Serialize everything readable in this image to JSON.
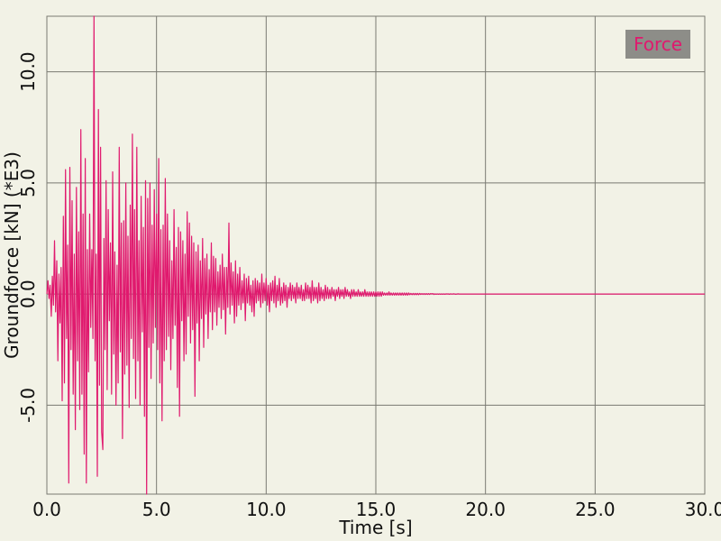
{
  "colors": {
    "background": "#f2f2e6",
    "grid": "#7a7a72",
    "series": "#e0196e",
    "legend_bg": "#8d8d88"
  },
  "chart_data": {
    "type": "line",
    "xlabel": "Time [s]",
    "ylabel": "Groundforce [kN] (*E3)",
    "xlim": [
      0,
      30
    ],
    "ylim": [
      -9.0,
      12.5
    ],
    "grid": true,
    "legend_position": "top-right",
    "x_ticks": [
      "0.0",
      "5.0",
      "10.0",
      "15.0",
      "20.0",
      "25.0",
      "30.0"
    ],
    "y_ticks": [
      "10.0",
      "5.0",
      "0.0",
      "-5.0"
    ],
    "series": [
      {
        "name": "Force",
        "color": "#e0196e",
        "sample_dt": 0.05,
        "y": [
          0.0,
          0.6,
          -0.2,
          0.4,
          -1.0,
          0.8,
          -0.5,
          2.4,
          -0.8,
          1.5,
          -3.0,
          0.9,
          -1.3,
          1.2,
          -4.8,
          3.5,
          -4.0,
          5.6,
          -2.0,
          2.2,
          -8.5,
          5.7,
          -2.5,
          4.2,
          -4.5,
          1.8,
          -6.1,
          4.8,
          -3.0,
          2.8,
          -5.2,
          7.4,
          -4.5,
          3.6,
          -7.2,
          6.1,
          -8.5,
          2.0,
          -3.5,
          3.6,
          -1.5,
          2.0,
          -2.0,
          12.5,
          -3.0,
          1.8,
          -8.2,
          8.3,
          -4.1,
          6.6,
          -6.2,
          -7.0,
          2.5,
          -2.5,
          5.1,
          -4.3,
          3.8,
          -1.2,
          2.3,
          -4.5,
          5.5,
          -2.7,
          1.9,
          -5.0,
          1.3,
          -4.0,
          6.6,
          -2.6,
          3.2,
          -6.5,
          3.3,
          -3.6,
          5.0,
          -3.2,
          2.6,
          -5.1,
          4.0,
          -2.0,
          7.2,
          -2.9,
          3.8,
          -4.7,
          6.6,
          -3.0,
          2.4,
          -5.0,
          4.4,
          -1.7,
          3.0,
          -5.5,
          5.1,
          -9.0,
          4.3,
          -2.4,
          5.0,
          -3.8,
          3.1,
          -2.2,
          4.7,
          -1.5,
          3.6,
          -2.5,
          6.1,
          -4.0,
          2.9,
          -5.7,
          3.1,
          -3.0,
          5.2,
          -2.5,
          3.6,
          -1.9,
          2.4,
          -3.4,
          1.5,
          -2.0,
          3.8,
          -1.4,
          2.1,
          -4.2,
          3.0,
          -5.5,
          2.8,
          -1.2,
          2.4,
          -3.0,
          1.8,
          -2.7,
          3.7,
          -1.0,
          3.2,
          -2.2,
          2.6,
          -1.6,
          2.3,
          -4.6,
          1.9,
          -1.3,
          2.2,
          -3.0,
          1.5,
          -1.1,
          2.5,
          -2.4,
          1.6,
          -0.9,
          1.8,
          -2.0,
          1.1,
          -0.8,
          2.3,
          -1.6,
          1.7,
          -0.8,
          1.6,
          -1.4,
          1.0,
          -0.6,
          1.3,
          -1.1,
          1.8,
          -0.7,
          1.2,
          -1.8,
          1.2,
          -0.6,
          3.2,
          -0.9,
          1.4,
          -0.5,
          1.0,
          -1.3,
          1.5,
          -1.0,
          0.9,
          -0.5,
          1.2,
          -0.7,
          0.6,
          -0.4,
          0.9,
          -1.2,
          0.7,
          -0.4,
          0.8,
          -0.5,
          0.4,
          -0.8,
          0.6,
          -1.0,
          0.7,
          -0.4,
          0.6,
          -0.3,
          0.5,
          -0.6,
          0.9,
          -0.4,
          0.5,
          -0.3,
          0.7,
          -0.5,
          0.4,
          -0.8,
          0.5,
          -0.3,
          0.6,
          -0.4,
          0.8,
          -0.6,
          0.4,
          -0.3,
          0.7,
          -0.5,
          0.3,
          -0.4,
          0.5,
          -0.3,
          0.4,
          -0.6,
          0.3,
          -0.2,
          0.5,
          -0.3,
          0.4,
          -0.2,
          0.3,
          -0.4,
          0.5,
          -0.2,
          0.3,
          -0.2,
          0.4,
          -0.3,
          0.2,
          -0.3,
          0.5,
          -0.2,
          0.4,
          -0.2,
          0.3,
          -0.4,
          0.6,
          -0.3,
          0.3,
          -0.2,
          0.3,
          -0.4,
          0.5,
          -0.3,
          0.3,
          -0.2,
          0.2,
          -0.3,
          0.4,
          -0.2,
          0.3,
          -0.2,
          0.2,
          -0.2,
          0.3,
          -0.1,
          0.2,
          -0.3,
          0.2,
          -0.1,
          0.3,
          -0.2,
          0.2,
          -0.1,
          0.2,
          -0.2,
          0.3,
          -0.1,
          0.2,
          -0.1,
          0.1,
          -0.2,
          0.2,
          -0.1,
          0.2,
          -0.1,
          0.1,
          -0.1,
          0.2,
          -0.1,
          0.1,
          -0.1,
          0.1,
          -0.1,
          0.2,
          -0.1,
          0.1,
          -0.1,
          0.1,
          -0.1,
          0.1,
          -0.1,
          0.1,
          -0.1,
          0.1,
          -0.1,
          0.1,
          -0.1,
          0.1,
          -0.1,
          0.1,
          -0.05,
          0.05,
          -0.05,
          0.05,
          -0.05,
          0.1,
          -0.05,
          0.05,
          -0.05,
          0.05,
          -0.05,
          0.05,
          -0.05,
          0.05,
          -0.05,
          0.05,
          -0.05,
          0.05,
          -0.05,
          0.05,
          -0.05,
          0.05,
          -0.05,
          0.05,
          -0.03,
          0.03,
          -0.03,
          0.03,
          -0.03,
          0.03,
          -0.03,
          0.03,
          -0.03,
          0.03,
          -0.02,
          0.02,
          -0.02,
          0.02,
          -0.02,
          0.02,
          -0.02,
          0.02,
          -0.02,
          0.02,
          0.0,
          0.02,
          -0.02,
          0.01,
          -0.01,
          0.01,
          -0.01,
          0.01,
          -0.01,
          0.01,
          -0.01,
          0.01,
          -0.01,
          0.01,
          0.0,
          0.01,
          -0.01,
          0.01,
          0.0,
          0.0,
          0.01,
          0.0,
          -0.01,
          0.0,
          0.01,
          0.0,
          0.0,
          0.0,
          0.0,
          0.0,
          0.0,
          0.0,
          0.0,
          0.0,
          0.0,
          0.0,
          0.0,
          0.0,
          0.0,
          0.0,
          0.0,
          0.0,
          0.0,
          0.0,
          0.0,
          0.0,
          0.0,
          0.0,
          0.0,
          0.0,
          0.0,
          0.0,
          0.0,
          0.0,
          0.0,
          0.0,
          0.0,
          0.0,
          0.0,
          0.0,
          0.0,
          0.0,
          0.0,
          0.0,
          0.0,
          0.0,
          0.0,
          0.0,
          0.0,
          0.0,
          0.0,
          0.0,
          0.0,
          0.0,
          0.0,
          0.0,
          0.0,
          0.0,
          0.0,
          0.0,
          0.0,
          0.0,
          0.0,
          0.0,
          0.0,
          0.0,
          0.0,
          0.0,
          0.0,
          0.0,
          0.0,
          0.0,
          0.0,
          0.0,
          0.0,
          0.0,
          0.0,
          0.0,
          0.0,
          0.0,
          0.0,
          0.0,
          0.0,
          0.0,
          0.0,
          0.0,
          0.0,
          0.0,
          0.0,
          0.0,
          0.0,
          0.0,
          0.0,
          0.0,
          0.0,
          0.0,
          0.0,
          0.0,
          0.0,
          0.0,
          0.0,
          0.0,
          0.0,
          0.0,
          0.0,
          0.0,
          0.0,
          0.0,
          0.0,
          0.0,
          0.0,
          0.0,
          0.0,
          0.0,
          0.0,
          0.0,
          0.0,
          0.0,
          0.0,
          0.0,
          0.0,
          0.0,
          0.0,
          0.0,
          0.0,
          0.0,
          0.0,
          0.0,
          0.0,
          0.0,
          0.0,
          0.0,
          0.0,
          0.0,
          0.0,
          0.0,
          0.0,
          0.0,
          0.0,
          0.0,
          0.0,
          0.0,
          0.0,
          0.0,
          0.0,
          0.0,
          0.0,
          0.0,
          0.0,
          0.0,
          0.0,
          0.0,
          0.0,
          0.0,
          0.0,
          0.0,
          0.0,
          0.0,
          0.0,
          0.0,
          0.0,
          0.0,
          0.0,
          0.0,
          0.0,
          0.0,
          0.0,
          0.0,
          0.0,
          0.0,
          0.0,
          0.0,
          0.0,
          0.0,
          0.0,
          0.0,
          0.0,
          0.0,
          0.0,
          0.0,
          0.0,
          0.0,
          0.0,
          0.0,
          0.0,
          0.0,
          0.0,
          0.0,
          0.0,
          0.0,
          0.0,
          0.0,
          0.0,
          0.0,
          0.0,
          0.0,
          0.0,
          0.0,
          0.0,
          0.0,
          0.0,
          0.0,
          0.0,
          0.0,
          0.0,
          0.0,
          0.0
        ]
      }
    ]
  }
}
